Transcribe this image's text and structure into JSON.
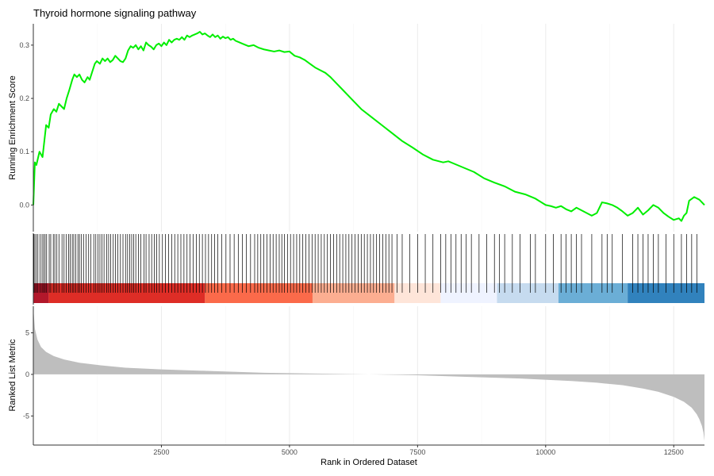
{
  "chart_data": {
    "type": "line",
    "title": "Thyroid hormone signaling pathway",
    "xlabel": "Rank in Ordered Dataset",
    "xlim": [
      0,
      13100
    ],
    "x_ticks": [
      2500,
      5000,
      7500,
      10000,
      12500
    ],
    "x_tick_labels": [
      "2500",
      "5000",
      "7500",
      "10000",
      "12500"
    ],
    "grid": "vertical",
    "line_color": "#00ee00",
    "panels": {
      "enrichment": {
        "ylabel": "Running Enrichment Score",
        "ylim": [
          -0.05,
          0.34
        ],
        "y_ticks": [
          0.0,
          0.1,
          0.2,
          0.3
        ],
        "y_tick_labels": [
          "0.0",
          "0.1",
          "0.2",
          "0.3"
        ],
        "series": [
          {
            "x": [
              0,
              30,
              60,
              120,
              180,
              250,
              300,
              340,
              400,
              450,
              500,
              550,
              600,
              650,
              700,
              760,
              800,
              850,
              900,
              950,
              1000,
              1060,
              1100,
              1150,
              1200,
              1240,
              1300,
              1350,
              1400,
              1450,
              1500,
              1550,
              1600,
              1650,
              1700,
              1750,
              1800,
              1850,
              1900,
              1950,
              2000,
              2050,
              2100,
              2150,
              2200,
              2250,
              2300,
              2350,
              2400,
              2450,
              2500,
              2550,
              2600,
              2650,
              2700,
              2750,
              2800,
              2850,
              2900,
              2950,
              3000,
              3050,
              3100,
              3150,
              3200,
              3250,
              3300,
              3350,
              3400,
              3450,
              3500,
              3550,
              3600,
              3650,
              3700,
              3750,
              3800,
              3850,
              3900,
              3950,
              4000,
              4100,
              4200,
              4300,
              4400,
              4500,
              4600,
              4700,
              4800,
              4900,
              5000,
              5100,
              5200,
              5300,
              5400,
              5500,
              5600,
              5700,
              5800,
              5900,
              6000,
              6200,
              6400,
              6600,
              6800,
              7000,
              7200,
              7400,
              7600,
              7800,
              8000,
              8100,
              8200,
              8400,
              8600,
              8800,
              9000,
              9200,
              9400,
              9600,
              9800,
              10000,
              10100,
              10200,
              10300,
              10400,
              10500,
              10600,
              10700,
              10800,
              10900,
              11000,
              11100,
              11200,
              11300,
              11400,
              11500,
              11600,
              11700,
              11800,
              11900,
              12000,
              12100,
              12200,
              12300,
              12400,
              12500,
              12600,
              12650,
              12700,
              12750,
              12800,
              12900,
              13000,
              13100
            ],
            "y": [
              0.0,
              0.08,
              0.075,
              0.1,
              0.09,
              0.15,
              0.145,
              0.17,
              0.18,
              0.175,
              0.19,
              0.185,
              0.18,
              0.2,
              0.215,
              0.235,
              0.245,
              0.24,
              0.245,
              0.235,
              0.23,
              0.24,
              0.235,
              0.25,
              0.265,
              0.27,
              0.265,
              0.275,
              0.27,
              0.275,
              0.268,
              0.272,
              0.28,
              0.275,
              0.27,
              0.268,
              0.275,
              0.29,
              0.298,
              0.295,
              0.3,
              0.292,
              0.298,
              0.29,
              0.305,
              0.3,
              0.297,
              0.292,
              0.3,
              0.303,
              0.298,
              0.305,
              0.3,
              0.31,
              0.305,
              0.31,
              0.312,
              0.31,
              0.315,
              0.31,
              0.318,
              0.315,
              0.318,
              0.32,
              0.322,
              0.325,
              0.32,
              0.322,
              0.318,
              0.315,
              0.32,
              0.315,
              0.318,
              0.312,
              0.316,
              0.313,
              0.315,
              0.31,
              0.312,
              0.308,
              0.306,
              0.302,
              0.298,
              0.3,
              0.295,
              0.292,
              0.29,
              0.288,
              0.29,
              0.287,
              0.288,
              0.28,
              0.277,
              0.272,
              0.265,
              0.258,
              0.253,
              0.248,
              0.24,
              0.23,
              0.22,
              0.2,
              0.18,
              0.165,
              0.15,
              0.135,
              0.12,
              0.108,
              0.095,
              0.085,
              0.08,
              0.082,
              0.078,
              0.07,
              0.062,
              0.05,
              0.042,
              0.035,
              0.025,
              0.02,
              0.012,
              0.0,
              -0.002,
              -0.005,
              -0.002,
              -0.008,
              -0.012,
              -0.005,
              -0.01,
              -0.015,
              -0.02,
              -0.015,
              0.005,
              0.003,
              0.0,
              -0.005,
              -0.012,
              -0.02,
              -0.015,
              -0.005,
              -0.018,
              -0.01,
              0.0,
              -0.005,
              -0.015,
              -0.022,
              -0.028,
              -0.025,
              -0.03,
              -0.02,
              -0.015,
              0.008,
              0.015,
              0.01,
              0.0
            ]
          }
        ]
      },
      "hits": {
        "x": [
          10,
          30,
          60,
          90,
          130,
          170,
          200,
          230,
          260,
          310,
          340,
          390,
          420,
          460,
          500,
          560,
          600,
          640,
          690,
          720,
          760,
          790,
          830,
          870,
          900,
          940,
          980,
          1030,
          1080,
          1120,
          1180,
          1220,
          1260,
          1300,
          1340,
          1380,
          1430,
          1470,
          1510,
          1560,
          1600,
          1650,
          1700,
          1750,
          1800,
          1840,
          1880,
          1920,
          1960,
          2000,
          2050,
          2100,
          2160,
          2200,
          2260,
          2310,
          2360,
          2410,
          2460,
          2520,
          2580,
          2640,
          2700,
          2760,
          2820,
          2880,
          2940,
          3000,
          3060,
          3120,
          3180,
          3240,
          3300,
          3360,
          3420,
          3480,
          3540,
          3600,
          3680,
          3760,
          3840,
          3920,
          4000,
          4080,
          4160,
          4240,
          4320,
          4380,
          4440,
          4500,
          4560,
          4620,
          4680,
          4740,
          4800,
          4850,
          4900,
          4960,
          5020,
          5080,
          5140,
          5200,
          5260,
          5320,
          5380,
          5440,
          5500,
          5560,
          5620,
          5680,
          5740,
          5800,
          5860,
          5920,
          5980,
          6040,
          6100,
          6160,
          6220,
          6280,
          6340,
          6400,
          6460,
          6520,
          6580,
          6640,
          6700,
          6760,
          6820,
          6880,
          6940,
          7000,
          7100,
          7200,
          7350,
          7500,
          7650,
          7800,
          7950,
          8050,
          8150,
          8250,
          8350,
          8450,
          8550,
          8700,
          8850,
          9000,
          9100,
          9200,
          9350,
          9500,
          9700,
          9800,
          10000,
          10150,
          10300,
          10400,
          10500,
          10600,
          10700,
          10900,
          11100,
          11200,
          11300,
          11500,
          11700,
          11800,
          11900,
          12000,
          12100,
          12200,
          12350,
          12500,
          12650,
          12750,
          12850,
          12950
        ],
        "color": "#000000"
      },
      "ranked": {
        "ylabel": "Ranked List Metric",
        "ylim": [
          -8.5,
          8.2
        ],
        "y_ticks": [
          -5,
          0,
          5
        ],
        "y_tick_labels": [
          "-5",
          "0",
          "5"
        ],
        "fill_color": "#bebebe",
        "x": [
          0,
          30,
          80,
          150,
          250,
          400,
          600,
          900,
          1300,
          1800,
          2500,
          3500,
          4500,
          5500,
          6550,
          7500,
          8500,
          9500,
          10500,
          11000,
          11500,
          11900,
          12200,
          12500,
          12700,
          12850,
          12950,
          13000,
          13050,
          13080,
          13100
        ],
        "y": [
          8.0,
          5.5,
          4.2,
          3.3,
          2.7,
          2.2,
          1.8,
          1.4,
          1.1,
          0.8,
          0.6,
          0.4,
          0.2,
          0.1,
          0.0,
          -0.1,
          -0.3,
          -0.5,
          -0.8,
          -1.0,
          -1.3,
          -1.7,
          -2.1,
          -2.7,
          -3.3,
          -4.0,
          -4.8,
          -5.4,
          -6.2,
          -7.0,
          -8.0
        ]
      },
      "color_band": {
        "segments": [
          {
            "x0": 0,
            "x1": 300,
            "color": "#b2182b"
          },
          {
            "x0": 300,
            "x1": 3350,
            "color": "#de2d26"
          },
          {
            "x0": 3350,
            "x1": 5450,
            "color": "#fb6a4a"
          },
          {
            "x0": 5450,
            "x1": 7050,
            "color": "#fcae91"
          },
          {
            "x0": 7050,
            "x1": 7950,
            "color": "#fee5d9"
          },
          {
            "x0": 7950,
            "x1": 9050,
            "color": "#eff3ff"
          },
          {
            "x0": 9050,
            "x1": 10250,
            "color": "#c6dbef"
          },
          {
            "x0": 10250,
            "x1": 11600,
            "color": "#6baed6"
          },
          {
            "x0": 11600,
            "x1": 13100,
            "color": "#3182bd"
          }
        ]
      }
    }
  }
}
